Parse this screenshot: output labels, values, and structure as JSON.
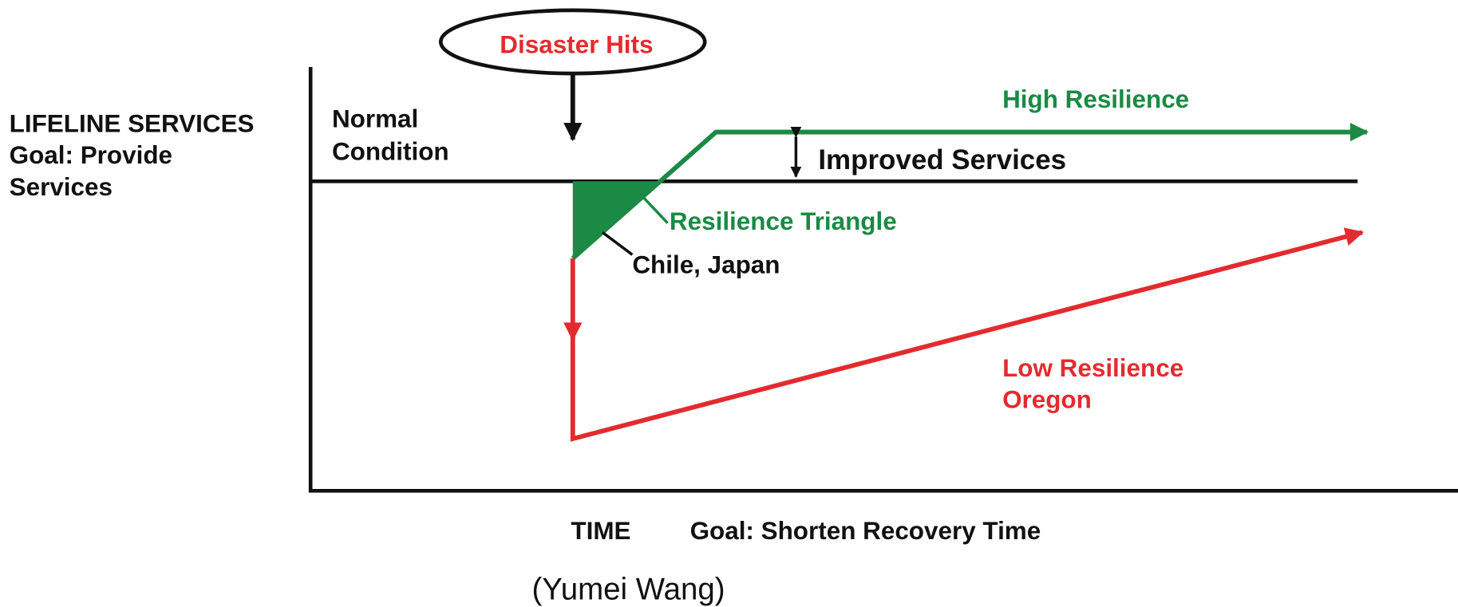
{
  "callout": "Disaster Hits",
  "y_axis_label": [
    "LIFELINE SERVICES",
    "Goal: Provide",
    "Services"
  ],
  "normal_condition": [
    "Normal",
    "Condition"
  ],
  "high_resilience": "High Resilience",
  "improved_services": "Improved Services",
  "resilience_triangle": "Resilience Triangle",
  "examples_high": "Chile, Japan",
  "low_resilience": [
    "Low Resilience",
    "Oregon"
  ],
  "x_axis_label": "TIME",
  "x_axis_goal": "Goal: Shorten Recovery Time",
  "credit": "(Yumei Wang)"
}
